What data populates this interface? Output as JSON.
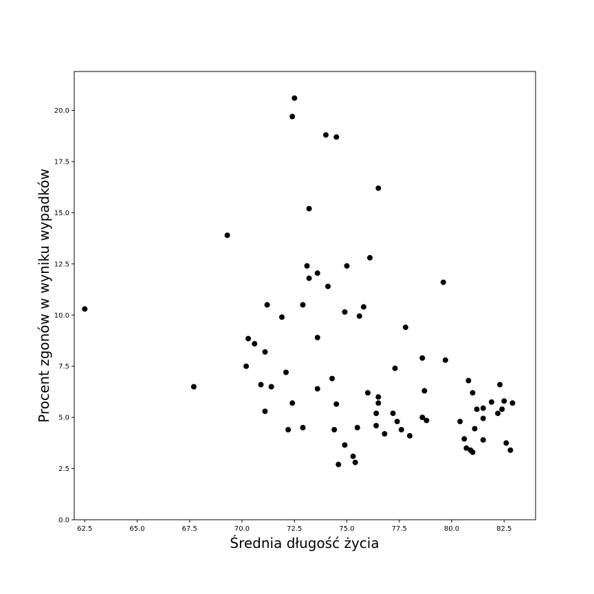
{
  "chart_data": {
    "type": "scatter",
    "xlabel": "Średnia długość życia",
    "ylabel": "Procent zgonów w wyniku wypadków",
    "xlim": [
      62.0,
      84.0
    ],
    "ylim": [
      0.0,
      21.9
    ],
    "x_ticks": [
      "62.5",
      "65.0",
      "67.5",
      "70.0",
      "72.5",
      "75.0",
      "77.5",
      "80.0",
      "82.5"
    ],
    "y_ticks": [
      "0.0",
      "2.5",
      "5.0",
      "7.5",
      "10.0",
      "12.5",
      "15.0",
      "17.5",
      "20.0"
    ],
    "grid": false,
    "legend": "none",
    "marker_color": "#000000",
    "points": [
      [
        62.5,
        10.3
      ],
      [
        67.7,
        6.5
      ],
      [
        69.3,
        13.9
      ],
      [
        70.2,
        7.5
      ],
      [
        70.3,
        8.85
      ],
      [
        70.6,
        8.6
      ],
      [
        70.9,
        6.6
      ],
      [
        71.1,
        5.3
      ],
      [
        71.2,
        10.5
      ],
      [
        71.1,
        8.2
      ],
      [
        71.4,
        6.5
      ],
      [
        71.9,
        9.9
      ],
      [
        72.1,
        7.2
      ],
      [
        72.2,
        4.4
      ],
      [
        72.4,
        19.7
      ],
      [
        72.5,
        20.6
      ],
      [
        72.4,
        5.7
      ],
      [
        72.9,
        10.5
      ],
      [
        72.9,
        4.5
      ],
      [
        73.1,
        12.4
      ],
      [
        73.2,
        15.2
      ],
      [
        73.2,
        11.8
      ],
      [
        73.6,
        12.05
      ],
      [
        73.6,
        8.9
      ],
      [
        73.6,
        6.4
      ],
      [
        74.0,
        18.8
      ],
      [
        74.1,
        11.4
      ],
      [
        74.3,
        6.9
      ],
      [
        74.5,
        18.7
      ],
      [
        74.5,
        5.65
      ],
      [
        74.4,
        4.4
      ],
      [
        74.6,
        2.7
      ],
      [
        74.9,
        10.15
      ],
      [
        75.0,
        12.4
      ],
      [
        74.9,
        3.65
      ],
      [
        75.3,
        3.1
      ],
      [
        75.4,
        2.8
      ],
      [
        75.6,
        9.95
      ],
      [
        75.5,
        4.5
      ],
      [
        75.8,
        10.4
      ],
      [
        76.1,
        12.8
      ],
      [
        76.0,
        6.2
      ],
      [
        76.5,
        16.2
      ],
      [
        76.5,
        6.0
      ],
      [
        76.5,
        5.7
      ],
      [
        76.4,
        5.2
      ],
      [
        76.4,
        4.6
      ],
      [
        76.8,
        4.2
      ],
      [
        77.2,
        5.2
      ],
      [
        77.3,
        7.4
      ],
      [
        77.4,
        4.8
      ],
      [
        77.6,
        4.4
      ],
      [
        77.8,
        9.4
      ],
      [
        78.0,
        4.1
      ],
      [
        78.6,
        7.9
      ],
      [
        78.6,
        5.0
      ],
      [
        78.7,
        6.3
      ],
      [
        78.8,
        4.85
      ],
      [
        79.6,
        11.6
      ],
      [
        79.7,
        7.8
      ],
      [
        80.4,
        4.8
      ],
      [
        80.6,
        3.95
      ],
      [
        80.7,
        3.5
      ],
      [
        80.8,
        6.8
      ],
      [
        80.9,
        3.4
      ],
      [
        81.0,
        6.2
      ],
      [
        81.0,
        3.3
      ],
      [
        81.1,
        4.45
      ],
      [
        81.2,
        5.4
      ],
      [
        81.5,
        5.45
      ],
      [
        81.5,
        4.95
      ],
      [
        81.5,
        3.9
      ],
      [
        81.9,
        5.75
      ],
      [
        82.2,
        5.2
      ],
      [
        82.3,
        6.6
      ],
      [
        82.4,
        5.4
      ],
      [
        82.5,
        5.8
      ],
      [
        82.6,
        3.75
      ],
      [
        82.8,
        3.4
      ],
      [
        82.9,
        5.7
      ]
    ]
  }
}
